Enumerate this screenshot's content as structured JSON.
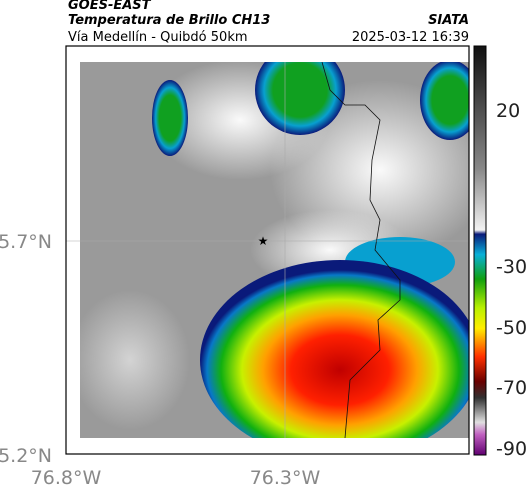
{
  "header": {
    "product": "GOES-EAST",
    "title": "Temperatura de Brillo CH13",
    "source": "SIATA",
    "route": "Vía Medellín - Quibdó 50km",
    "timestamp": "2025-03-12 16:39"
  },
  "map": {
    "lat_ticks": [
      "5.7°N",
      "5.2°N"
    ],
    "lon_ticks": [
      "76.8°W",
      "76.3°W"
    ]
  },
  "colorbar": {
    "ticks": [
      "20",
      "-30",
      "-50",
      "-70",
      "-90"
    ]
  }
}
